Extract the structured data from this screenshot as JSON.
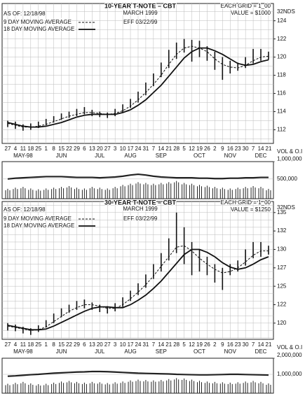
{
  "chart_data": [
    {
      "type": "price",
      "title": "10-YEAR T-NOTE – CBT",
      "subtitle": "MARCH 1999",
      "as_of": "AS OF: 12/18/98",
      "grid_note": "EACH GRID = 1_00",
      "value_note": "VALUE = $1000",
      "units": "32NDS",
      "effective": "EFF 03/22/99",
      "categories": [
        "27",
        "4",
        "11",
        "18",
        "25",
        "1",
        "8",
        "15",
        "22",
        "29",
        "6",
        "13",
        "20",
        "27",
        "3",
        "10",
        "17",
        "24",
        "31",
        "7",
        "14",
        "21",
        "28",
        "5",
        "12",
        "19",
        "26",
        "2",
        "9",
        "16",
        "23",
        "30",
        "7",
        "14",
        "21"
      ],
      "months": [
        null,
        null,
        "MAY-98",
        null,
        null,
        null,
        null,
        "JUN",
        null,
        null,
        null,
        null,
        "JUL",
        null,
        null,
        null,
        "AUG",
        null,
        null,
        null,
        "SEP",
        null,
        null,
        null,
        null,
        "OCT",
        null,
        null,
        null,
        "NOV",
        null,
        null,
        null,
        "DEC",
        null
      ],
      "high": [
        113.0,
        112.9,
        112.6,
        112.7,
        112.9,
        113.2,
        113.5,
        113.8,
        114.0,
        114.3,
        114.5,
        114.2,
        114.0,
        113.9,
        114.3,
        114.8,
        115.4,
        116.2,
        117.2,
        118.2,
        119.4,
        120.8,
        121.6,
        122.0,
        121.9,
        121.8,
        121.2,
        120.6,
        120.0,
        119.6,
        119.4,
        120.0,
        120.9,
        120.9,
        120.6
      ],
      "low": [
        112.3,
        112.1,
        111.9,
        112.0,
        112.2,
        112.5,
        112.8,
        113.1,
        113.3,
        113.5,
        113.7,
        113.5,
        113.4,
        113.3,
        113.5,
        113.9,
        114.4,
        115.0,
        115.8,
        116.8,
        117.8,
        118.8,
        119.8,
        120.5,
        119.5,
        120.0,
        119.6,
        118.6,
        117.5,
        118.2,
        118.5,
        118.8,
        119.3,
        119.6,
        119.7
      ],
      "series": [
        {
          "name": "9 DAY MOVING AVERAGE",
          "style": "dashed",
          "color": "#111111",
          "values": [
            112.7,
            112.5,
            112.3,
            112.3,
            112.4,
            112.6,
            112.9,
            113.2,
            113.5,
            113.7,
            113.9,
            113.9,
            113.8,
            113.7,
            113.8,
            114.1,
            114.6,
            115.3,
            116.1,
            117.0,
            118.0,
            119.2,
            120.3,
            121.0,
            121.2,
            121.0,
            120.6,
            119.8,
            119.2,
            118.9,
            118.8,
            119.1,
            119.6,
            120.0,
            120.1
          ]
        },
        {
          "name": "18 DAY MOVING AVERAGE",
          "style": "solid",
          "color": "#111111",
          "values": [
            112.8,
            112.6,
            112.4,
            112.3,
            112.3,
            112.4,
            112.6,
            112.8,
            113.1,
            113.4,
            113.6,
            113.7,
            113.7,
            113.7,
            113.7,
            113.9,
            114.2,
            114.7,
            115.3,
            116.1,
            116.9,
            117.9,
            118.9,
            119.9,
            120.6,
            121.0,
            121.0,
            120.7,
            120.3,
            119.8,
            119.3,
            119.1,
            119.2,
            119.5,
            119.7
          ]
        }
      ],
      "ylim": [
        110.5,
        125.9
      ],
      "yticks": [
        112,
        114,
        116,
        118,
        120,
        122,
        124
      ],
      "grid": true,
      "grid_step": 1
    },
    {
      "type": "volume",
      "label": "VOL & O.I",
      "volume": [
        250000,
        280000,
        300000,
        260000,
        240000,
        260000,
        280000,
        300000,
        320000,
        280000,
        260000,
        300000,
        280000,
        260000,
        300000,
        350000,
        380000,
        420000,
        400000,
        380000,
        400000,
        420000,
        450000,
        400000,
        380000,
        350000,
        330000,
        300000,
        280000,
        260000,
        280000,
        300000,
        320000,
        300000,
        250000
      ],
      "open_interest": [
        500000,
        520000,
        530000,
        540000,
        550000,
        560000,
        560000,
        560000,
        550000,
        540000,
        540000,
        540000,
        530000,
        540000,
        550000,
        570000,
        600000,
        620000,
        600000,
        570000,
        550000,
        540000,
        530000,
        530000,
        530000,
        520000,
        520000,
        510000,
        510000,
        520000,
        520000,
        530000,
        530000,
        540000,
        540000
      ],
      "ylim": [
        0,
        1100000
      ],
      "yticks": [
        {
          "value": 1000000,
          "label": "1,000,000"
        },
        {
          "value": 500000,
          "label": "500,000"
        }
      ],
      "color": "#222222"
    },
    {
      "type": "price",
      "title": "30-YEAR T-NOTE – CBT",
      "subtitle": "MARCH 1999",
      "as_of": "AS OF: 12/18/98",
      "grid_note": "EACH GRID = 1_00",
      "value_note": "VALUE = $1250",
      "units": "32NDS",
      "effective": "EFF 03/22/99",
      "categories": [
        "27",
        "4",
        "11",
        "18",
        "25",
        "1",
        "8",
        "15",
        "22",
        "29",
        "6",
        "13",
        "20",
        "27",
        "3",
        "10",
        "17",
        "24",
        "31",
        "7",
        "14",
        "21",
        "28",
        "5",
        "12",
        "19",
        "26",
        "2",
        "9",
        "16",
        "23",
        "30",
        "7",
        "14",
        "21"
      ],
      "months": [
        null,
        null,
        "MAY-98",
        null,
        null,
        null,
        null,
        "JUN",
        null,
        null,
        null,
        null,
        "JUL",
        null,
        null,
        null,
        "AUG",
        null,
        null,
        null,
        "SEP",
        null,
        null,
        null,
        null,
        "OCT",
        null,
        null,
        null,
        "NOV",
        null,
        null,
        null,
        "DEC",
        null
      ],
      "high": [
        120.0,
        119.8,
        119.5,
        119.3,
        119.7,
        120.4,
        121.3,
        122.0,
        122.5,
        123.0,
        123.2,
        122.8,
        122.5,
        122.3,
        122.7,
        123.5,
        124.4,
        125.4,
        126.6,
        128.0,
        129.5,
        131.5,
        135.0,
        133.0,
        131.0,
        130.0,
        129.0,
        128.0,
        127.5,
        128.0,
        128.5,
        130.0,
        131.0,
        131.0,
        130.5
      ],
      "low": [
        119.0,
        118.9,
        118.6,
        118.4,
        118.8,
        119.4,
        120.0,
        120.8,
        121.4,
        121.8,
        122.0,
        121.8,
        121.5,
        121.3,
        121.6,
        122.2,
        123.0,
        123.8,
        124.8,
        126.0,
        127.0,
        128.5,
        129.5,
        128.0,
        126.5,
        127.0,
        126.5,
        125.5,
        124.5,
        126.5,
        127.0,
        127.8,
        128.8,
        129.0,
        129.3
      ],
      "series": [
        {
          "name": "9 DAY MOVING AVERAGE",
          "style": "dashed",
          "color": "#111111",
          "values": [
            119.6,
            119.4,
            119.2,
            119.0,
            119.1,
            119.5,
            120.2,
            120.9,
            121.6,
            122.1,
            122.5,
            122.5,
            122.3,
            122.0,
            122.0,
            122.5,
            123.3,
            124.2,
            125.2,
            126.4,
            127.7,
            129.0,
            130.3,
            130.5,
            129.8,
            128.8,
            128.0,
            127.3,
            126.8,
            127.0,
            127.5,
            128.3,
            129.2,
            129.8,
            129.8
          ]
        },
        {
          "name": "18 DAY MOVING AVERAGE",
          "style": "solid",
          "color": "#111111",
          "values": [
            119.7,
            119.5,
            119.3,
            119.1,
            119.1,
            119.2,
            119.6,
            120.1,
            120.6,
            121.1,
            121.6,
            122.0,
            122.2,
            122.2,
            122.1,
            122.1,
            122.5,
            123.1,
            123.8,
            124.7,
            125.7,
            126.9,
            128.1,
            129.3,
            130.0,
            130.0,
            129.6,
            129.0,
            128.2,
            127.6,
            127.3,
            127.5,
            128.0,
            128.6,
            129.0
          ]
        }
      ],
      "ylim": [
        117.8,
        136.5
      ],
      "yticks": [
        {
          "value": 135,
          "label": "135"
        },
        {
          "value": 132.5,
          "label": "132"
        },
        130,
        {
          "value": 127.5,
          "label": "127"
        },
        125,
        {
          "value": 122.5,
          "label": "122"
        },
        120
      ],
      "grid": true,
      "grid_step": 1
    },
    {
      "type": "volume",
      "label": "VOL & O.I",
      "volume": [
        500000,
        550000,
        600000,
        520000,
        480000,
        500000,
        560000,
        620000,
        650000,
        600000,
        560000,
        600000,
        580000,
        540000,
        580000,
        620000,
        680000,
        720000,
        700000,
        680000,
        700000,
        750000,
        800000,
        780000,
        720000,
        660000,
        620000,
        600000,
        580000,
        560000,
        580000,
        620000,
        650000,
        600000,
        520000
      ],
      "open_interest": [
        900000,
        920000,
        950000,
        980000,
        1000000,
        1030000,
        1060000,
        1080000,
        1100000,
        1120000,
        1130000,
        1150000,
        1150000,
        1140000,
        1120000,
        1100000,
        1080000,
        1060000,
        1050000,
        1040000,
        1030000,
        1020000,
        1000000,
        990000,
        980000,
        970000,
        970000,
        980000,
        990000,
        1000000,
        1000000,
        990000,
        980000,
        970000,
        960000
      ],
      "ylim": [
        0,
        2150000
      ],
      "yticks": [
        {
          "value": 2000000,
          "label": "2,000,000"
        },
        {
          "value": 1000000,
          "label": "1,000,000"
        }
      ],
      "color": "#222222"
    }
  ]
}
